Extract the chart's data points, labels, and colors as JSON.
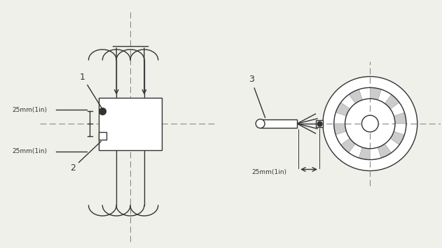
{
  "bg_color": "#f0f0eb",
  "line_color": "#333333",
  "label_1": "1",
  "label_2": "2",
  "label_3": "3",
  "dim_text_1": "25mm(1in)",
  "dim_text_2": "25mm(1in)",
  "dim_text_3": "25mm(1in)",
  "figure_width": 6.31,
  "figure_height": 3.55
}
